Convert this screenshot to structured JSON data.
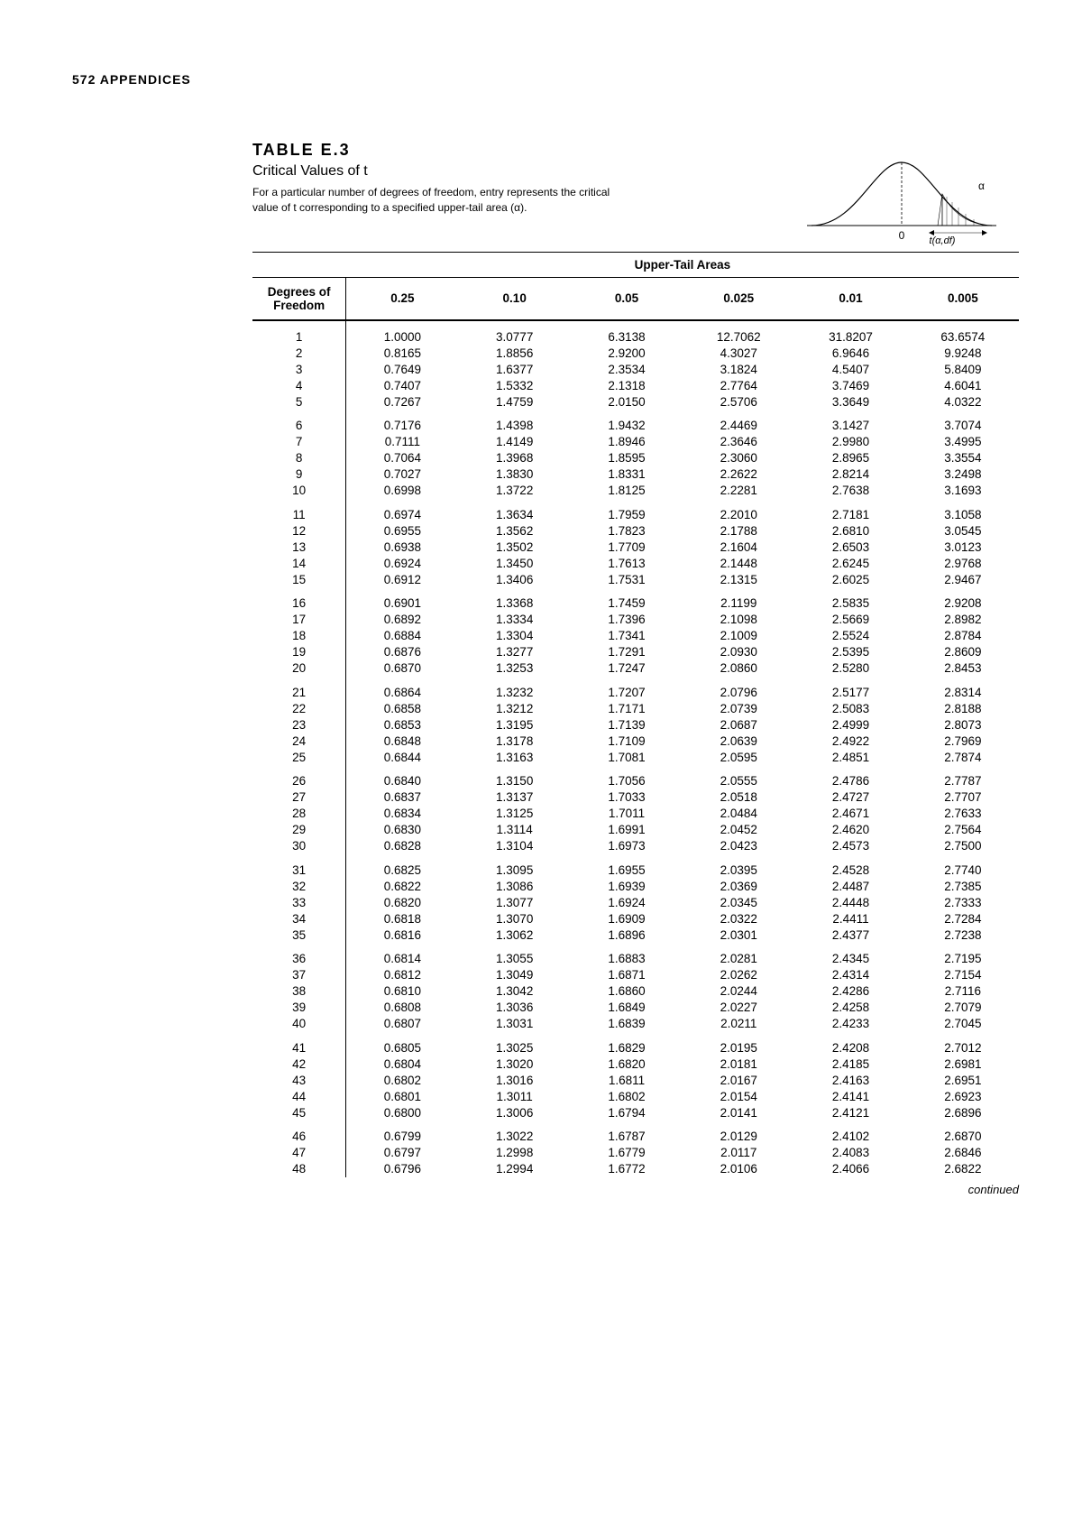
{
  "page_header": "572 APPENDICES",
  "table_heading": "TABLE E.3",
  "table_subtitle": "Critical Values of t",
  "table_desc": "For a particular number of degrees of freedom, entry represents the critical value of t corresponding to a specified upper-tail area (α).",
  "curve": {
    "zero_label": "0",
    "alpha_label": "α",
    "t_label": "t(α,df)"
  },
  "column_super_header": "Upper-Tail Areas",
  "df_header": "Degrees of Freedom",
  "alpha_columns": [
    "0.25",
    "0.10",
    "0.05",
    "0.025",
    "0.01",
    "0.005"
  ],
  "rows": [
    {
      "df": "1",
      "v": [
        "1.0000",
        "3.0777",
        "6.3138",
        "12.7062",
        "31.8207",
        "63.6574"
      ],
      "g": true
    },
    {
      "df": "2",
      "v": [
        "0.8165",
        "1.8856",
        "2.9200",
        "4.3027",
        "6.9646",
        "9.9248"
      ]
    },
    {
      "df": "3",
      "v": [
        "0.7649",
        "1.6377",
        "2.3534",
        "3.1824",
        "4.5407",
        "5.8409"
      ]
    },
    {
      "df": "4",
      "v": [
        "0.7407",
        "1.5332",
        "2.1318",
        "2.7764",
        "3.7469",
        "4.6041"
      ]
    },
    {
      "df": "5",
      "v": [
        "0.7267",
        "1.4759",
        "2.0150",
        "2.5706",
        "3.3649",
        "4.0322"
      ]
    },
    {
      "df": "6",
      "v": [
        "0.7176",
        "1.4398",
        "1.9432",
        "2.4469",
        "3.1427",
        "3.7074"
      ],
      "g": true
    },
    {
      "df": "7",
      "v": [
        "0.7111",
        "1.4149",
        "1.8946",
        "2.3646",
        "2.9980",
        "3.4995"
      ]
    },
    {
      "df": "8",
      "v": [
        "0.7064",
        "1.3968",
        "1.8595",
        "2.3060",
        "2.8965",
        "3.3554"
      ]
    },
    {
      "df": "9",
      "v": [
        "0.7027",
        "1.3830",
        "1.8331",
        "2.2622",
        "2.8214",
        "3.2498"
      ]
    },
    {
      "df": "10",
      "v": [
        "0.6998",
        "1.3722",
        "1.8125",
        "2.2281",
        "2.7638",
        "3.1693"
      ]
    },
    {
      "df": "11",
      "v": [
        "0.6974",
        "1.3634",
        "1.7959",
        "2.2010",
        "2.7181",
        "3.1058"
      ],
      "g": true
    },
    {
      "df": "12",
      "v": [
        "0.6955",
        "1.3562",
        "1.7823",
        "2.1788",
        "2.6810",
        "3.0545"
      ]
    },
    {
      "df": "13",
      "v": [
        "0.6938",
        "1.3502",
        "1.7709",
        "2.1604",
        "2.6503",
        "3.0123"
      ]
    },
    {
      "df": "14",
      "v": [
        "0.6924",
        "1.3450",
        "1.7613",
        "2.1448",
        "2.6245",
        "2.9768"
      ]
    },
    {
      "df": "15",
      "v": [
        "0.6912",
        "1.3406",
        "1.7531",
        "2.1315",
        "2.6025",
        "2.9467"
      ]
    },
    {
      "df": "16",
      "v": [
        "0.6901",
        "1.3368",
        "1.7459",
        "2.1199",
        "2.5835",
        "2.9208"
      ],
      "g": true
    },
    {
      "df": "17",
      "v": [
        "0.6892",
        "1.3334",
        "1.7396",
        "2.1098",
        "2.5669",
        "2.8982"
      ]
    },
    {
      "df": "18",
      "v": [
        "0.6884",
        "1.3304",
        "1.7341",
        "2.1009",
        "2.5524",
        "2.8784"
      ]
    },
    {
      "df": "19",
      "v": [
        "0.6876",
        "1.3277",
        "1.7291",
        "2.0930",
        "2.5395",
        "2.8609"
      ]
    },
    {
      "df": "20",
      "v": [
        "0.6870",
        "1.3253",
        "1.7247",
        "2.0860",
        "2.5280",
        "2.8453"
      ]
    },
    {
      "df": "21",
      "v": [
        "0.6864",
        "1.3232",
        "1.7207",
        "2.0796",
        "2.5177",
        "2.8314"
      ],
      "g": true
    },
    {
      "df": "22",
      "v": [
        "0.6858",
        "1.3212",
        "1.7171",
        "2.0739",
        "2.5083",
        "2.8188"
      ]
    },
    {
      "df": "23",
      "v": [
        "0.6853",
        "1.3195",
        "1.7139",
        "2.0687",
        "2.4999",
        "2.8073"
      ]
    },
    {
      "df": "24",
      "v": [
        "0.6848",
        "1.3178",
        "1.7109",
        "2.0639",
        "2.4922",
        "2.7969"
      ]
    },
    {
      "df": "25",
      "v": [
        "0.6844",
        "1.3163",
        "1.7081",
        "2.0595",
        "2.4851",
        "2.7874"
      ]
    },
    {
      "df": "26",
      "v": [
        "0.6840",
        "1.3150",
        "1.7056",
        "2.0555",
        "2.4786",
        "2.7787"
      ],
      "g": true
    },
    {
      "df": "27",
      "v": [
        "0.6837",
        "1.3137",
        "1.7033",
        "2.0518",
        "2.4727",
        "2.7707"
      ]
    },
    {
      "df": "28",
      "v": [
        "0.6834",
        "1.3125",
        "1.7011",
        "2.0484",
        "2.4671",
        "2.7633"
      ]
    },
    {
      "df": "29",
      "v": [
        "0.6830",
        "1.3114",
        "1.6991",
        "2.0452",
        "2.4620",
        "2.7564"
      ]
    },
    {
      "df": "30",
      "v": [
        "0.6828",
        "1.3104",
        "1.6973",
        "2.0423",
        "2.4573",
        "2.7500"
      ]
    },
    {
      "df": "31",
      "v": [
        "0.6825",
        "1.3095",
        "1.6955",
        "2.0395",
        "2.4528",
        "2.7740"
      ],
      "g": true
    },
    {
      "df": "32",
      "v": [
        "0.6822",
        "1.3086",
        "1.6939",
        "2.0369",
        "2.4487",
        "2.7385"
      ]
    },
    {
      "df": "33",
      "v": [
        "0.6820",
        "1.3077",
        "1.6924",
        "2.0345",
        "2.4448",
        "2.7333"
      ]
    },
    {
      "df": "34",
      "v": [
        "0.6818",
        "1.3070",
        "1.6909",
        "2.0322",
        "2.4411",
        "2.7284"
      ]
    },
    {
      "df": "35",
      "v": [
        "0.6816",
        "1.3062",
        "1.6896",
        "2.0301",
        "2.4377",
        "2.7238"
      ]
    },
    {
      "df": "36",
      "v": [
        "0.6814",
        "1.3055",
        "1.6883",
        "2.0281",
        "2.4345",
        "2.7195"
      ],
      "g": true
    },
    {
      "df": "37",
      "v": [
        "0.6812",
        "1.3049",
        "1.6871",
        "2.0262",
        "2.4314",
        "2.7154"
      ]
    },
    {
      "df": "38",
      "v": [
        "0.6810",
        "1.3042",
        "1.6860",
        "2.0244",
        "2.4286",
        "2.7116"
      ]
    },
    {
      "df": "39",
      "v": [
        "0.6808",
        "1.3036",
        "1.6849",
        "2.0227",
        "2.4258",
        "2.7079"
      ]
    },
    {
      "df": "40",
      "v": [
        "0.6807",
        "1.3031",
        "1.6839",
        "2.0211",
        "2.4233",
        "2.7045"
      ]
    },
    {
      "df": "41",
      "v": [
        "0.6805",
        "1.3025",
        "1.6829",
        "2.0195",
        "2.4208",
        "2.7012"
      ],
      "g": true
    },
    {
      "df": "42",
      "v": [
        "0.6804",
        "1.3020",
        "1.6820",
        "2.0181",
        "2.4185",
        "2.6981"
      ]
    },
    {
      "df": "43",
      "v": [
        "0.6802",
        "1.3016",
        "1.6811",
        "2.0167",
        "2.4163",
        "2.6951"
      ]
    },
    {
      "df": "44",
      "v": [
        "0.6801",
        "1.3011",
        "1.6802",
        "2.0154",
        "2.4141",
        "2.6923"
      ]
    },
    {
      "df": "45",
      "v": [
        "0.6800",
        "1.3006",
        "1.6794",
        "2.0141",
        "2.4121",
        "2.6896"
      ]
    },
    {
      "df": "46",
      "v": [
        "0.6799",
        "1.3022",
        "1.6787",
        "2.0129",
        "2.4102",
        "2.6870"
      ],
      "g": true
    },
    {
      "df": "47",
      "v": [
        "0.6797",
        "1.2998",
        "1.6779",
        "2.0117",
        "2.4083",
        "2.6846"
      ]
    },
    {
      "df": "48",
      "v": [
        "0.6796",
        "1.2994",
        "1.6772",
        "2.0106",
        "2.4066",
        "2.6822"
      ]
    }
  ],
  "continued_label": "continued"
}
